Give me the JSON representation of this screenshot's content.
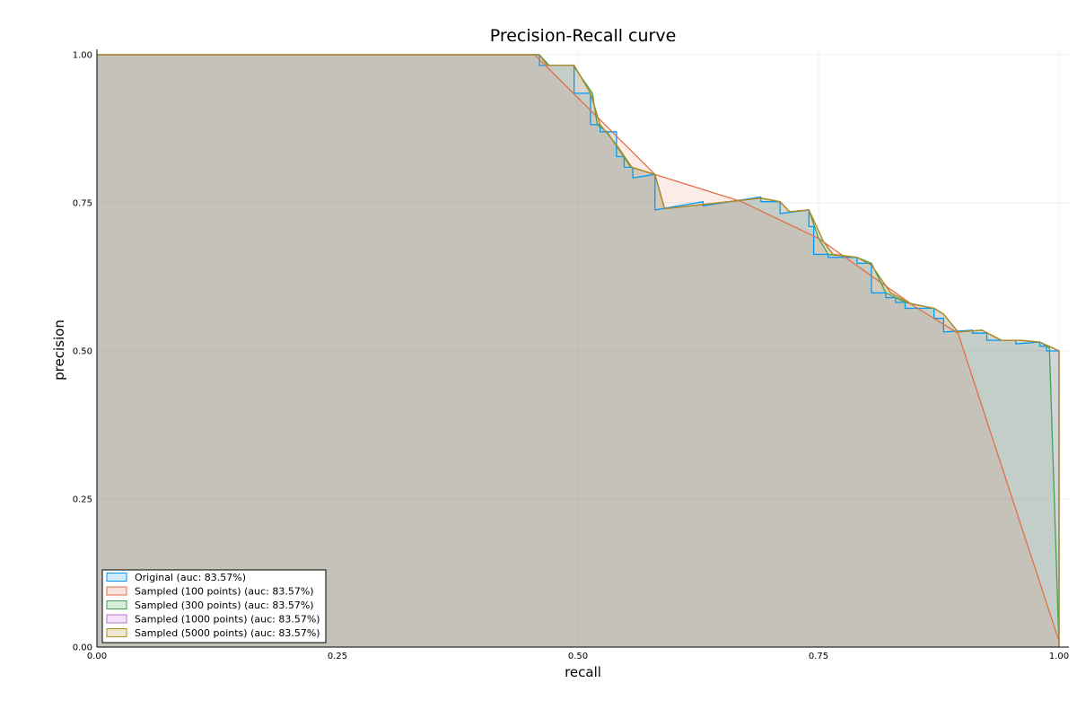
{
  "chart_data": {
    "type": "area",
    "title": "Precision-Recall curve",
    "xlabel": "recall",
    "ylabel": "precision",
    "xlim": [
      0,
      1
    ],
    "ylim": [
      0,
      1
    ],
    "xticks": [
      0,
      0.25,
      0.5,
      0.75,
      1
    ],
    "yticks": [
      0,
      0.25,
      0.5,
      0.75,
      1
    ],
    "xtick_labels": [
      "0.00",
      "0.25",
      "0.50",
      "0.75",
      "1.00"
    ],
    "ytick_labels": [
      "0.00",
      "0.25",
      "0.50",
      "0.75",
      "1.00"
    ],
    "grid": true,
    "legend_position": "bottom-left",
    "series": [
      {
        "name": "Original (auc: 83.57%)",
        "color": "#009AFA",
        "fill": "#CFEAFD",
        "x": [
          0,
          0.46,
          0.46,
          0.468,
          0.468,
          0.496,
          0.496,
          0.513,
          0.513,
          0.523,
          0.523,
          0.54,
          0.54,
          0.548,
          0.548,
          0.557,
          0.557,
          0.58,
          0.58,
          0.63,
          0.63,
          0.69,
          0.69,
          0.71,
          0.71,
          0.74,
          0.74,
          0.745,
          0.745,
          0.76,
          0.76,
          0.79,
          0.79,
          0.805,
          0.805,
          0.82,
          0.82,
          0.83,
          0.83,
          0.84,
          0.84,
          0.87,
          0.87,
          0.88,
          0.88,
          0.91,
          0.91,
          0.925,
          0.925,
          0.94,
          0.94,
          0.955,
          0.955,
          0.98,
          0.98,
          0.987,
          0.987,
          1.0,
          1.0
        ],
        "y": [
          1.0,
          1.0,
          0.982,
          0.982,
          0.982,
          0.982,
          0.935,
          0.935,
          0.882,
          0.882,
          0.87,
          0.87,
          0.828,
          0.828,
          0.81,
          0.81,
          0.792,
          0.798,
          0.738,
          0.752,
          0.745,
          0.76,
          0.752,
          0.752,
          0.732,
          0.738,
          0.71,
          0.71,
          0.663,
          0.663,
          0.658,
          0.658,
          0.648,
          0.648,
          0.598,
          0.598,
          0.59,
          0.59,
          0.582,
          0.582,
          0.572,
          0.572,
          0.555,
          0.555,
          0.532,
          0.535,
          0.53,
          0.53,
          0.518,
          0.518,
          0.518,
          0.518,
          0.512,
          0.515,
          0.508,
          0.508,
          0.5,
          0.5,
          0.0
        ]
      },
      {
        "name": "Sampled (100 points) (auc: 83.57%)",
        "color": "#E36F47",
        "fill": "#F9E2DA",
        "x": [
          0,
          0.455,
          0.58,
          0.67,
          0.75,
          0.85,
          0.895,
          1.0,
          1.0
        ],
        "y": [
          1.0,
          1.0,
          0.798,
          0.752,
          0.69,
          0.575,
          0.53,
          0.01,
          0.0
        ]
      },
      {
        "name": "Sampled (300 points) (auc: 83.57%)",
        "color": "#3EA44E",
        "fill": "#D8EDDB",
        "x": [
          0,
          0.46,
          0.47,
          0.495,
          0.515,
          0.52,
          0.53,
          0.555,
          0.58,
          0.59,
          0.69,
          0.71,
          0.72,
          0.74,
          0.75,
          0.76,
          0.79,
          0.805,
          0.82,
          0.84,
          0.87,
          0.88,
          0.895,
          0.92,
          0.94,
          0.96,
          0.98,
          0.99,
          1.0
        ],
        "y": [
          1.0,
          1.0,
          0.982,
          0.982,
          0.935,
          0.882,
          0.87,
          0.81,
          0.798,
          0.74,
          0.758,
          0.752,
          0.735,
          0.738,
          0.69,
          0.663,
          0.658,
          0.648,
          0.598,
          0.582,
          0.572,
          0.562,
          0.532,
          0.535,
          0.518,
          0.518,
          0.515,
          0.505,
          0.0
        ]
      },
      {
        "name": "Sampled (1000 points) (auc: 83.57%)",
        "color": "#C271D2",
        "fill": "#F3E3F6",
        "x": [
          0,
          0.46,
          0.468,
          0.496,
          0.513,
          0.523,
          0.54,
          0.556,
          0.58,
          0.59,
          0.69,
          0.71,
          0.72,
          0.74,
          0.755,
          0.765,
          0.79,
          0.805,
          0.825,
          0.845,
          0.87,
          0.88,
          0.895,
          0.92,
          0.94,
          0.96,
          0.98,
          1.0,
          1.0
        ],
        "y": [
          1.0,
          1.0,
          0.982,
          0.982,
          0.935,
          0.882,
          0.848,
          0.81,
          0.798,
          0.74,
          0.758,
          0.752,
          0.735,
          0.738,
          0.685,
          0.663,
          0.658,
          0.645,
          0.598,
          0.58,
          0.572,
          0.562,
          0.532,
          0.535,
          0.518,
          0.518,
          0.515,
          0.5,
          0.0
        ]
      },
      {
        "name": "Sampled (5000 points) (auc: 83.57%)",
        "color": "#AC8D18",
        "fill": "#EEE8D1",
        "x": [
          0,
          0.46,
          0.468,
          0.496,
          0.513,
          0.523,
          0.54,
          0.556,
          0.58,
          0.59,
          0.69,
          0.71,
          0.72,
          0.74,
          0.755,
          0.765,
          0.79,
          0.805,
          0.825,
          0.845,
          0.87,
          0.88,
          0.895,
          0.92,
          0.94,
          0.96,
          0.98,
          1.0,
          1.0
        ],
        "y": [
          1.0,
          1.0,
          0.982,
          0.982,
          0.935,
          0.882,
          0.848,
          0.81,
          0.798,
          0.74,
          0.758,
          0.752,
          0.735,
          0.738,
          0.685,
          0.663,
          0.658,
          0.645,
          0.598,
          0.58,
          0.572,
          0.562,
          0.532,
          0.535,
          0.518,
          0.518,
          0.515,
          0.5,
          0.0
        ]
      }
    ]
  }
}
